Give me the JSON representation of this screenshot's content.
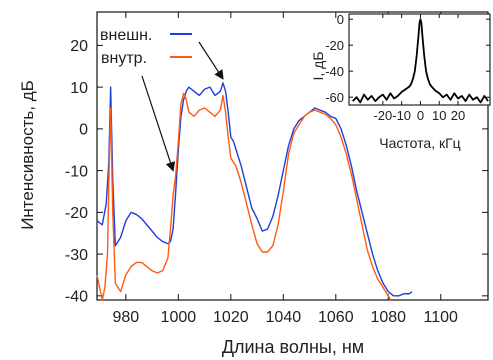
{
  "chart_data": [
    {
      "type": "line",
      "xlabel": "Длина волны, нм",
      "ylabel": "Интенсивность, дБ",
      "xlim": [
        969,
        1118
      ],
      "ylim": [
        -41,
        28
      ],
      "xticks": [
        980,
        1000,
        1020,
        1040,
        1060,
        1080,
        1100
      ],
      "yticks": [
        -40,
        -30,
        -20,
        -10,
        0,
        10,
        20
      ],
      "grid": false,
      "legend_position": "top-left",
      "annotations": [
        "arrow from внешн. label to blue spectrum near 1017 nm",
        "arrow from внутр. label to orange spectrum near 998 nm"
      ],
      "series": [
        {
          "name": "внешн.",
          "color": "#1f3fd8",
          "x": [
            969,
            971,
            972.5,
            973.5,
            974.2,
            975,
            976,
            978,
            980,
            982,
            984,
            986,
            988,
            990,
            992,
            994,
            996,
            997,
            998,
            999,
            1000,
            1001,
            1002,
            1003,
            1004,
            1006,
            1008,
            1010,
            1012,
            1014,
            1016,
            1017,
            1018,
            1019,
            1020,
            1021,
            1022,
            1024,
            1026,
            1028,
            1030,
            1032,
            1034,
            1036,
            1038,
            1040,
            1042,
            1044,
            1046,
            1048,
            1050,
            1052,
            1054,
            1056,
            1058,
            1060,
            1062,
            1064,
            1066,
            1068,
            1070,
            1072,
            1074,
            1076,
            1078,
            1080,
            1082,
            1084,
            1086,
            1088,
            1089
          ],
          "values": [
            -22,
            -23,
            -18,
            -8,
            10,
            -12,
            -28,
            -26,
            -22,
            -20,
            -20.5,
            -21.5,
            -23,
            -24.5,
            -26,
            -27,
            -27.5,
            -27,
            -24,
            -15,
            -5,
            3,
            7,
            9,
            10,
            9,
            8,
            9.5,
            10,
            8,
            9,
            11,
            9,
            4,
            -2,
            -3,
            -5,
            -9,
            -14,
            -19,
            -21.5,
            -24.5,
            -24,
            -21,
            -16,
            -10,
            -4,
            0,
            2,
            3,
            4,
            5,
            4.5,
            4,
            3,
            2.5,
            0,
            -4,
            -9,
            -15,
            -20,
            -25,
            -30,
            -34,
            -37,
            -39,
            -40,
            -40,
            -39.5,
            -39.5,
            -39
          ],
          "stroke_width": 1.4
        },
        {
          "name": "внутр.",
          "color": "#ff5a14",
          "x": [
            969,
            970,
            971,
            972,
            973,
            973.6,
            974.2,
            975,
            976,
            977,
            978,
            980,
            982,
            984,
            986,
            988,
            990,
            992,
            994,
            996,
            997,
            998,
            999,
            1000,
            1001,
            1002,
            1003,
            1004,
            1006,
            1008,
            1010,
            1012,
            1014,
            1016,
            1017,
            1018,
            1019,
            1020,
            1021,
            1022,
            1024,
            1026,
            1028,
            1030,
            1032,
            1034,
            1036,
            1038,
            1040,
            1042,
            1044,
            1046,
            1048,
            1050,
            1052,
            1054,
            1056,
            1058,
            1060,
            1062,
            1064,
            1066,
            1068,
            1070,
            1072,
            1074,
            1076,
            1078,
            1080,
            1081
          ],
          "values": [
            -35,
            -38,
            -41,
            -38,
            -30,
            -10,
            5,
            -20,
            -37,
            -38,
            -39,
            -35,
            -33,
            -32,
            -32,
            -33,
            -34,
            -34.5,
            -34,
            -31,
            -24,
            -16,
            -11,
            -3,
            6,
            8.5,
            7,
            4,
            3,
            4.5,
            5,
            4,
            3,
            4.5,
            8,
            4,
            -2,
            -7,
            -8,
            -9,
            -13,
            -18,
            -23,
            -27.5,
            -29.5,
            -29.5,
            -28,
            -23,
            -15,
            -6,
            -1,
            1,
            3,
            4,
            4.5,
            4,
            3.5,
            2.5,
            1,
            -2,
            -6,
            -11,
            -17,
            -23,
            -29,
            -33,
            -36,
            -38,
            -40,
            -41
          ],
          "stroke_width": 1.4
        }
      ]
    },
    {
      "type": "line",
      "xlabel": "Частота, кГц",
      "ylabel": "I, дБ",
      "xlim": [
        -38,
        37
      ],
      "ylim": [
        -66,
        4
      ],
      "xticks": [
        -20,
        -10,
        0,
        10,
        20
      ],
      "yticks": [
        0,
        -20,
        -40,
        -60
      ],
      "grid": false,
      "series": [
        {
          "color": "#000000",
          "x": [
            -36,
            -34,
            -32,
            -30,
            -28,
            -26,
            -24,
            -22,
            -20,
            -18,
            -16,
            -14,
            -12,
            -10,
            -8,
            -6,
            -5,
            -4,
            -3,
            -2,
            -1,
            -0.5,
            0,
            0.5,
            1,
            2,
            3,
            4,
            5,
            6,
            8,
            10,
            12,
            14,
            16,
            18,
            20,
            22,
            24,
            26,
            28,
            30,
            32,
            34,
            36
          ],
          "values": [
            -63,
            -60,
            -64,
            -58,
            -62,
            -59,
            -63,
            -60,
            -58,
            -62,
            -57,
            -61,
            -59,
            -56,
            -54,
            -52,
            -50,
            -46,
            -40,
            -28,
            -12,
            -3,
            0,
            -3,
            -12,
            -28,
            -40,
            -46,
            -50,
            -52,
            -55,
            -57,
            -60,
            -58,
            -62,
            -57,
            -61,
            -59,
            -63,
            -58,
            -62,
            -60,
            -64,
            -59,
            -63
          ],
          "stroke_width": 1.8
        }
      ]
    }
  ]
}
